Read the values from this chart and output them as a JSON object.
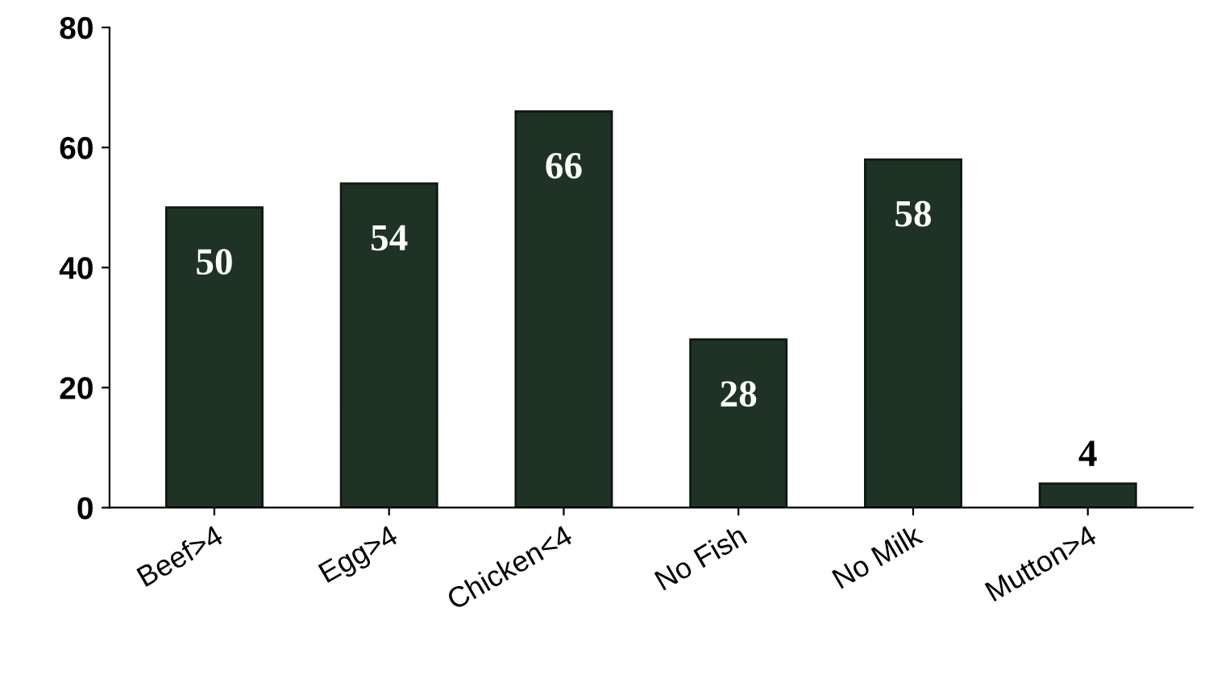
{
  "chart_data": {
    "type": "bar",
    "categories": [
      "Beef>4",
      "Egg>4",
      "Chicken<4",
      "No Fish",
      "No Milk",
      "Mutton>4"
    ],
    "values": [
      50,
      54,
      66,
      28,
      58,
      4
    ],
    "color": "#1e3326",
    "ylim": [
      0,
      80
    ],
    "yticks": [
      0,
      20,
      40,
      60,
      80
    ],
    "grid": false,
    "data_labels": true
  }
}
